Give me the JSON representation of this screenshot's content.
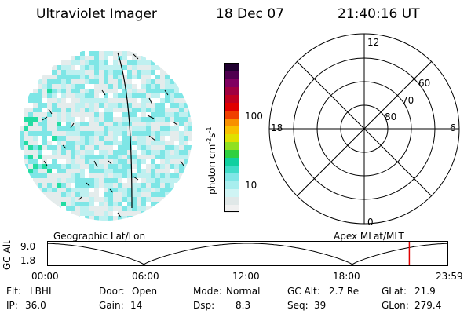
{
  "header": {
    "instrument": "Ultraviolet Imager",
    "date": "18 Dec 07",
    "time": "21:40:16 UT"
  },
  "colorbar": {
    "unit_label": "photon cm",
    "unit_exp1": "-2",
    "unit_s": "s",
    "unit_exp2": "-1",
    "ticks": [
      "100",
      "10"
    ],
    "colors": [
      "#f0f0f0",
      "#e0e8e8",
      "#cff4f4",
      "#a8eeee",
      "#80e6e6",
      "#40dcc8",
      "#10d0a0",
      "#30d040",
      "#90e020",
      "#e0e000",
      "#f8c000",
      "#f89000",
      "#f04000",
      "#e00000",
      "#c00020",
      "#a00040",
      "#800060",
      "#500050",
      "#200030"
    ]
  },
  "earth_map": {
    "colors": {
      "light": "#e4ecec",
      "cyan": "#bff0f0",
      "teal": "#7ee6e6",
      "green": "#22dca2"
    }
  },
  "polar_grid": {
    "mlt_labels": {
      "top": "12",
      "bottom": "0",
      "left": "18",
      "right": "6"
    },
    "mlat_labels": [
      "60",
      "70",
      "80"
    ]
  },
  "labels": {
    "left_caption": "Geographic Lat/Lon",
    "right_caption": "Apex MLat/MLT"
  },
  "timeline": {
    "ylabel": "GC Alt",
    "yticks": [
      "9.0",
      "1.8"
    ],
    "xticks": [
      "00:00",
      "06:00",
      "12:00",
      "18:00",
      "23:59"
    ],
    "marker_time": "21:40",
    "marker_color": "#e00000"
  },
  "footer": {
    "row1": [
      {
        "label": "Flt:",
        "value": "LBHL"
      },
      {
        "label": "Door:",
        "value": "Open"
      },
      {
        "label": "Mode:",
        "value": "Normal"
      },
      {
        "label": "GC Alt:",
        "value": "2.7 Re"
      },
      {
        "label": "GLat:",
        "value": "21.9"
      }
    ],
    "row2": [
      {
        "label": "IP:",
        "value": "36.0"
      },
      {
        "label": "Gain:",
        "value": "14"
      },
      {
        "label": "Dsp:",
        "value": "8.3"
      },
      {
        "label": "Seq:",
        "value": "39"
      },
      {
        "label": "GLon:",
        "value": "279.4"
      }
    ]
  }
}
